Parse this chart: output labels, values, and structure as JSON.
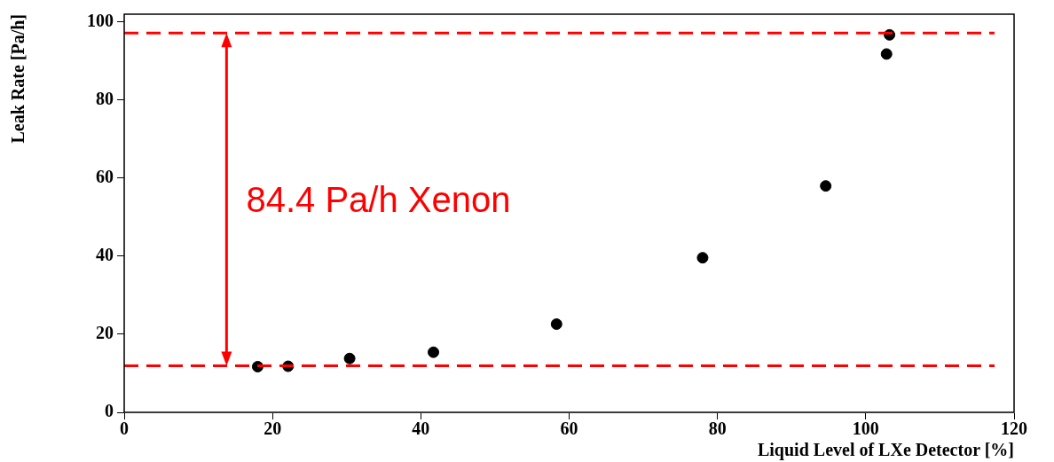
{
  "chart_data": {
    "type": "scatter",
    "xlabel": "Liquid Level of LXe Detector [%]",
    "ylabel": "Leak Rate [Pa/h]",
    "series": [
      {
        "color": "#000000",
        "x": [
          18.0,
          22.1,
          30.4,
          41.7,
          58.3,
          78.0,
          94.6,
          102.8,
          103.2
        ],
        "values": [
          11.7,
          11.8,
          13.8,
          15.4,
          22.6,
          39.6,
          58.0,
          91.8,
          96.7
        ]
      }
    ],
    "xlim": [
      0,
      120
    ],
    "xticks": [
      0,
      20,
      40,
      60,
      80,
      100,
      120
    ],
    "ylim": [
      0,
      102
    ],
    "yticks": [
      0,
      20,
      40,
      60,
      80,
      100
    ],
    "ref_lines": [
      {
        "axis": "y",
        "value": 97.2,
        "color": "#ff0000",
        "line_style": "dashed"
      },
      {
        "axis": "y",
        "value": 11.9,
        "color": "#ff0000",
        "line_style": "dashed"
      }
    ],
    "annotations": [
      "84.4 Pa/h Xenon"
    ],
    "grid": false,
    "legend": false,
    "marker": "circle"
  }
}
